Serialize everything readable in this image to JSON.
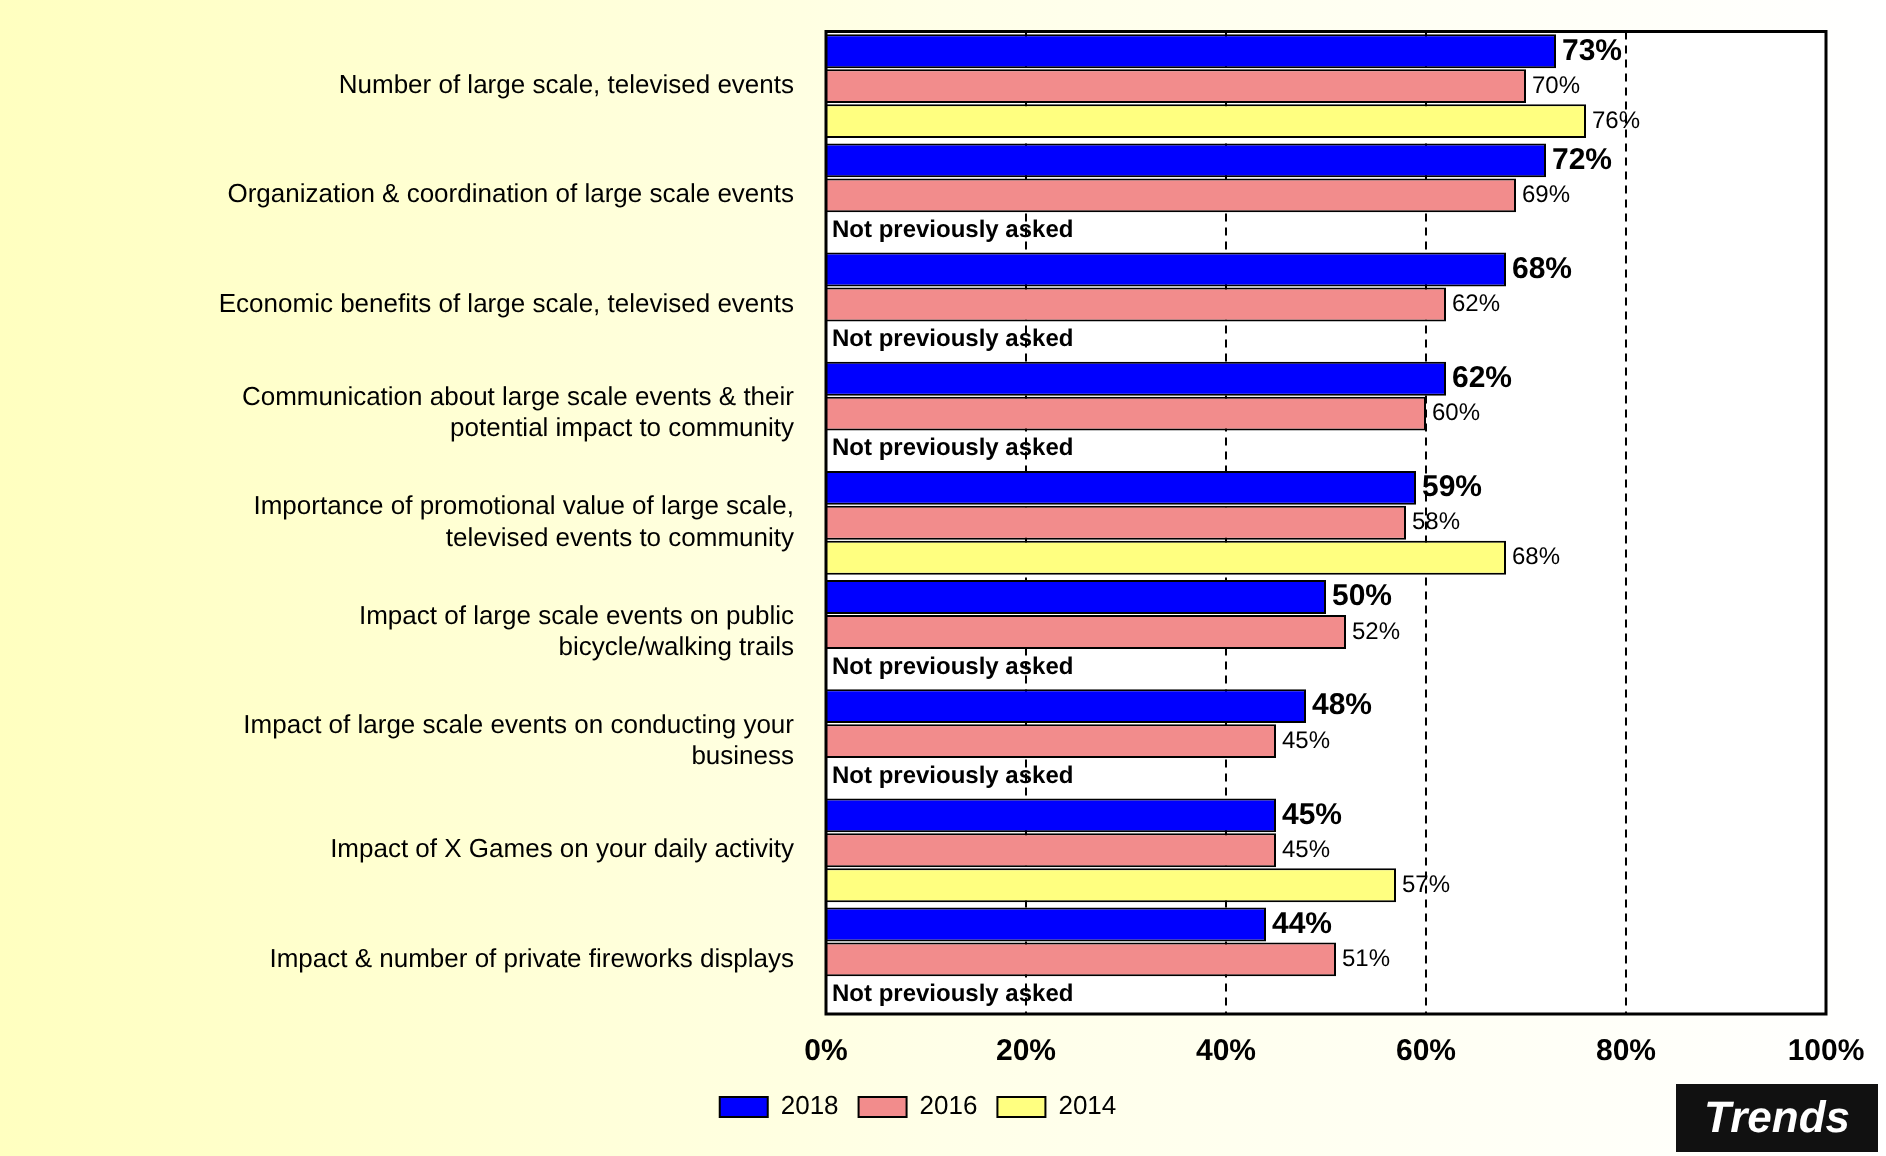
{
  "chart_data": {
    "type": "bar",
    "orientation": "horizontal",
    "categories": [
      "Number of large scale, televised events",
      "Organization & coordination of large scale events",
      "Economic benefits of large scale, televised events",
      "Communication about large scale events & their potential impact to community",
      "Importance of promotional value of large scale, televised events to community",
      "Impact of large scale events on public bicycle/walking trails",
      "Impact of large scale events on conducting your business",
      "Impact of X Games on your daily activity",
      "Impact & number of private fireworks displays"
    ],
    "series": [
      {
        "name": "2018",
        "color": "#0000ff",
        "values": [
          73,
          72,
          68,
          62,
          59,
          50,
          48,
          45,
          44
        ],
        "value_labels": [
          "73%",
          "72%",
          "68%",
          "62%",
          "59%",
          "50%",
          "48%",
          "45%",
          "44%"
        ]
      },
      {
        "name": "2016",
        "color": "#f28c8c",
        "values": [
          70,
          69,
          62,
          60,
          58,
          52,
          45,
          45,
          51
        ],
        "value_labels": [
          "70%",
          "69%",
          "62%",
          "60%",
          "58%",
          "52%",
          "45%",
          "45%",
          "51%"
        ]
      },
      {
        "name": "2014",
        "color": "#ffff80",
        "values": [
          76,
          null,
          null,
          null,
          68,
          null,
          null,
          57,
          null
        ],
        "value_labels": [
          "76%",
          "Not previously asked",
          "Not previously asked",
          "Not previously asked",
          "68%",
          "Not previously asked",
          "Not previously asked",
          "57%",
          "Not previously asked"
        ]
      }
    ],
    "xlim": [
      0,
      100
    ],
    "xticks": [
      {
        "value": 0,
        "label": "0%"
      },
      {
        "value": 20,
        "label": "20%"
      },
      {
        "value": 40,
        "label": "40%"
      },
      {
        "value": 60,
        "label": "60%"
      },
      {
        "value": 80,
        "label": "80%"
      },
      {
        "value": 100,
        "label": "100%"
      }
    ],
    "grid": "x",
    "legend": "bottom",
    "annotations": [
      "Trends"
    ]
  }
}
